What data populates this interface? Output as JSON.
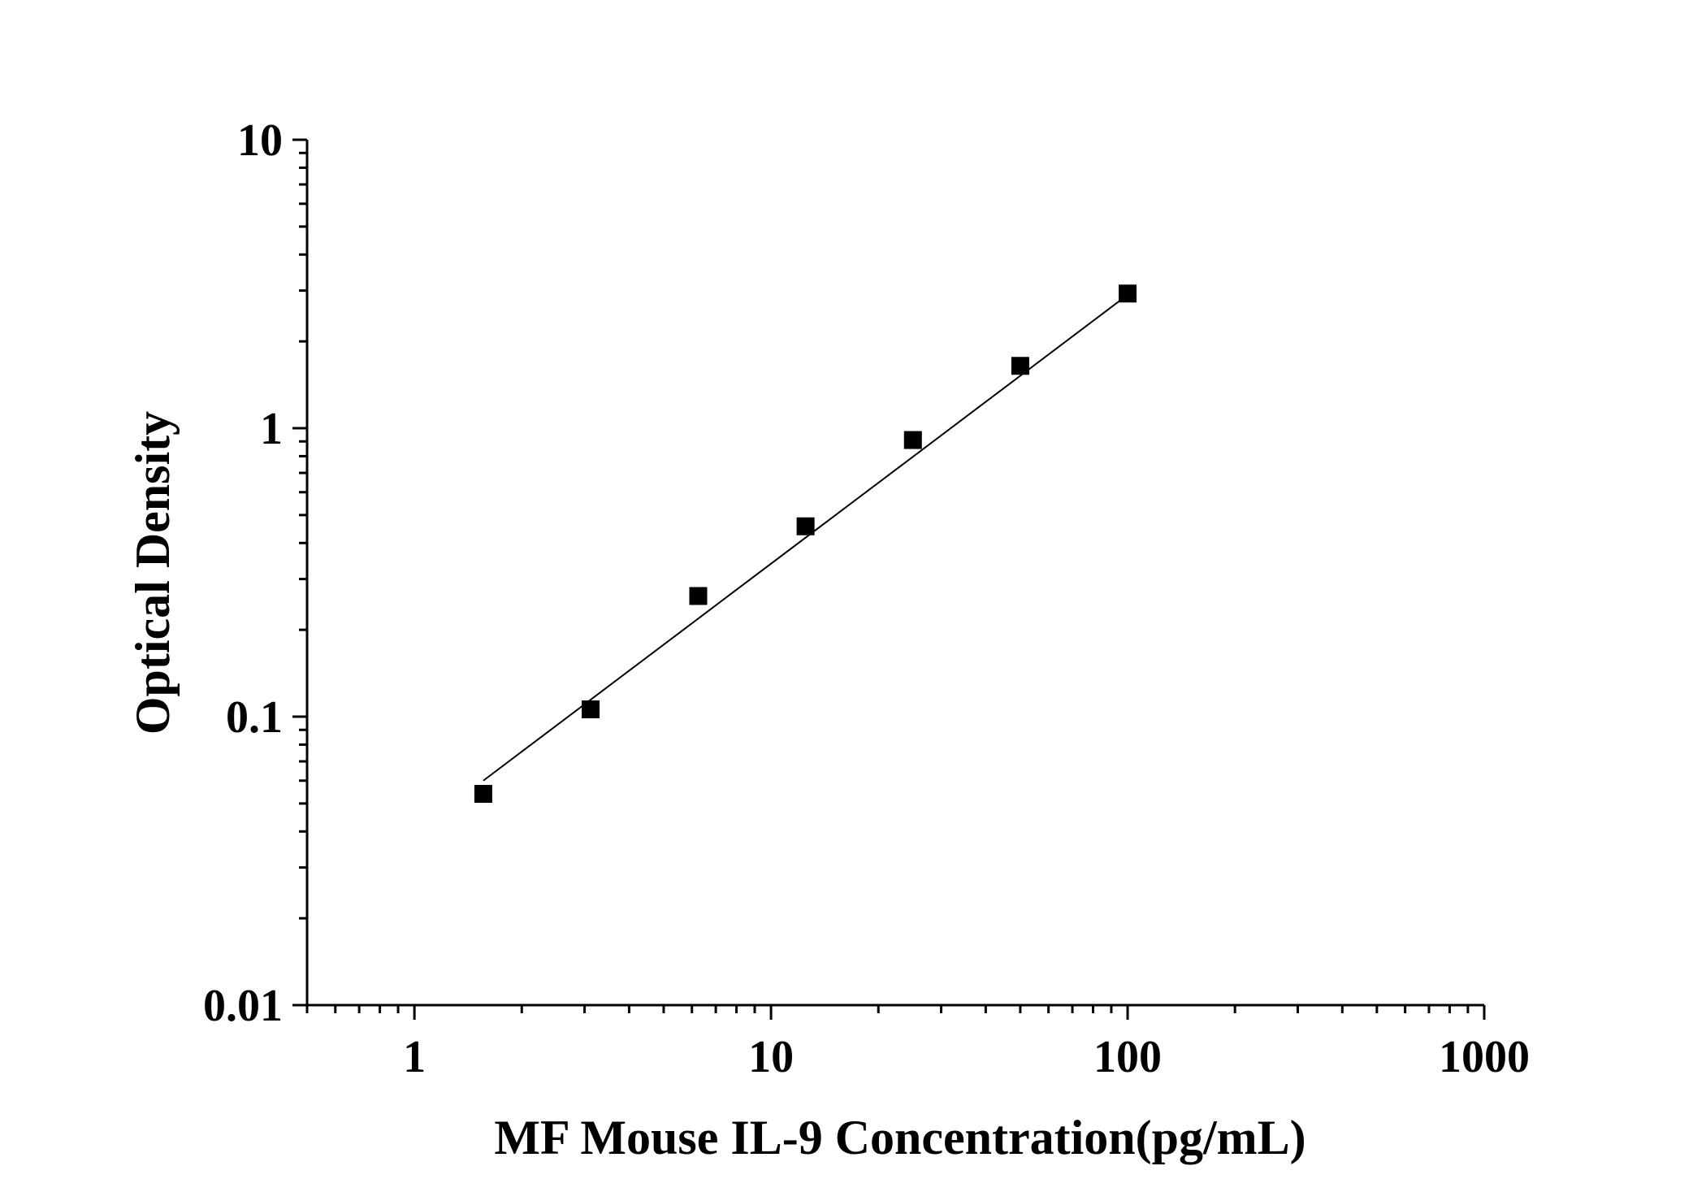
{
  "chart_data": {
    "type": "scatter",
    "title": "",
    "xlabel": "MF Mouse IL-9 Concentration(pg/mL)",
    "ylabel": "Optical Density",
    "x_scale": "log",
    "y_scale": "log",
    "xlim": [
      0.5,
      1000
    ],
    "ylim": [
      0.01,
      10
    ],
    "x_ticks": [
      {
        "value": 1,
        "label": "1"
      },
      {
        "value": 10,
        "label": "10"
      },
      {
        "value": 100,
        "label": "100"
      },
      {
        "value": 1000,
        "label": "1000"
      }
    ],
    "y_ticks": [
      {
        "value": 0.01,
        "label": "0.01"
      },
      {
        "value": 0.1,
        "label": "0.1"
      },
      {
        "value": 1,
        "label": "1"
      },
      {
        "value": 10,
        "label": "10"
      }
    ],
    "grid": false,
    "series": [
      {
        "marker": "square",
        "color": "#000000",
        "points": [
          {
            "x": 1.56,
            "y": 0.054
          },
          {
            "x": 3.12,
            "y": 0.106
          },
          {
            "x": 6.25,
            "y": 0.262
          },
          {
            "x": 12.5,
            "y": 0.457
          },
          {
            "x": 25,
            "y": 0.91
          },
          {
            "x": 50,
            "y": 1.645
          },
          {
            "x": 100,
            "y": 2.93
          }
        ]
      }
    ],
    "fit_line": {
      "color": "#000000",
      "points": [
        {
          "x": 1.56,
          "y": 0.06
        },
        {
          "x": 100,
          "y": 2.9
        }
      ]
    }
  }
}
